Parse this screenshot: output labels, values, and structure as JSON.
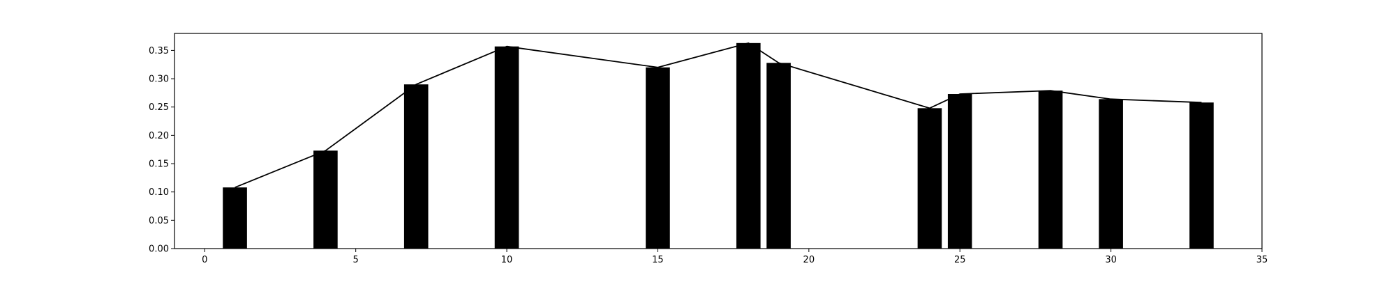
{
  "chart_data": {
    "type": "bar",
    "title": "",
    "xlabel": "",
    "ylabel": "",
    "xlim": [
      -1,
      35
    ],
    "ylim": [
      0,
      0.38
    ],
    "grid": false,
    "x_ticks": [
      0,
      5,
      10,
      15,
      20,
      25,
      30,
      35
    ],
    "x_tick_labels": [
      "0",
      "5",
      "10",
      "15",
      "20",
      "25",
      "30",
      "35"
    ],
    "y_ticks": [
      0,
      0.05,
      0.1,
      0.15,
      0.2,
      0.25,
      0.3,
      0.35
    ],
    "y_tick_labels": [
      "0.00",
      "0.05",
      "0.10",
      "0.15",
      "0.20",
      "0.25",
      "0.30",
      "0.35"
    ],
    "bar_width": 0.8,
    "x": [
      1,
      4,
      7,
      10,
      15,
      18,
      19,
      24,
      25,
      28,
      30,
      33
    ],
    "series": [
      {
        "type": "bar",
        "values": [
          0.108,
          0.173,
          0.29,
          0.357,
          0.32,
          0.363,
          0.328,
          0.248,
          0.273,
          0.279,
          0.264,
          0.258
        ],
        "color": "#000000"
      },
      {
        "type": "line",
        "values": [
          0.108,
          0.173,
          0.29,
          0.357,
          0.32,
          0.363,
          0.328,
          0.248,
          0.273,
          0.279,
          0.264,
          0.258
        ],
        "color": "#000000"
      }
    ]
  }
}
